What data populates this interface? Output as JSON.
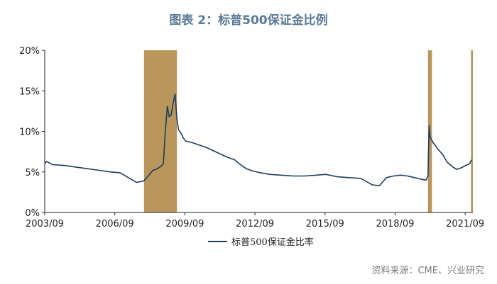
{
  "chart_data": {
    "type": "line",
    "title": "图表 2：标普500保证金比例",
    "xlabel": "",
    "ylabel": "",
    "ylim": [
      0,
      20
    ],
    "yticks": [
      0,
      5,
      10,
      15,
      20
    ],
    "ytick_labels": [
      "0%",
      "5%",
      "10%",
      "15%",
      "20%"
    ],
    "xlim": [
      2003.67,
      2022.0
    ],
    "xticks": [
      2003.67,
      2006.67,
      2009.67,
      2012.67,
      2015.67,
      2018.67,
      2021.67
    ],
    "xtick_labels": [
      "2003/09",
      "2006/09",
      "2009/09",
      "2012/09",
      "2015/09",
      "2018/09",
      "2021/09"
    ],
    "legend": {
      "position": "bottom-center"
    },
    "grid": false,
    "colors": {
      "line": "#1f3d5c",
      "shade": "#b8965c",
      "title": "#5a7898"
    },
    "shaded_periods": [
      [
        2007.92,
        2009.33
      ],
      [
        2020.08,
        2020.25
      ],
      [
        2021.92,
        2022.0
      ]
    ],
    "series": [
      {
        "name": "标普500保证金比率",
        "x": [
          2003.67,
          2003.75,
          2004.0,
          2004.5,
          2005.0,
          2005.5,
          2006.0,
          2006.5,
          2006.9,
          2007.25,
          2007.6,
          2007.92,
          2008.1,
          2008.3,
          2008.5,
          2008.65,
          2008.75,
          2008.83,
          2008.92,
          2009.0,
          2009.08,
          2009.17,
          2009.25,
          2009.33,
          2009.4,
          2009.5,
          2009.58,
          2009.7,
          2009.85,
          2010.0,
          2010.3,
          2010.6,
          2010.9,
          2011.2,
          2011.5,
          2011.8,
          2012.0,
          2012.3,
          2012.6,
          2012.9,
          2013.3,
          2013.8,
          2014.3,
          2014.8,
          2015.3,
          2015.7,
          2016.2,
          2016.7,
          2017.2,
          2017.7,
          2018.0,
          2018.3,
          2018.6,
          2018.9,
          2019.2,
          2019.5,
          2019.8,
          2020.0,
          2020.08,
          2020.1,
          2020.13,
          2020.17,
          2020.3,
          2020.5,
          2020.7,
          2020.9,
          2021.1,
          2021.3,
          2021.5,
          2021.7,
          2021.85,
          2021.95
        ],
        "values": [
          6.0,
          6.3,
          5.9,
          5.8,
          5.6,
          5.4,
          5.2,
          5.0,
          4.9,
          4.3,
          3.7,
          3.9,
          4.5,
          5.2,
          5.4,
          5.7,
          6.0,
          9.8,
          13.1,
          11.8,
          12.0,
          13.5,
          14.6,
          11.5,
          10.2,
          9.8,
          9.3,
          8.8,
          8.7,
          8.6,
          8.3,
          8.0,
          7.6,
          7.2,
          6.8,
          6.5,
          6.0,
          5.4,
          5.1,
          4.9,
          4.7,
          4.6,
          4.5,
          4.5,
          4.6,
          4.7,
          4.4,
          4.3,
          4.2,
          3.4,
          3.3,
          4.3,
          4.5,
          4.6,
          4.5,
          4.3,
          4.1,
          4.0,
          4.5,
          7.5,
          10.7,
          9.3,
          8.6,
          7.8,
          7.2,
          6.2,
          5.7,
          5.3,
          5.5,
          5.8,
          6.0,
          6.5
        ]
      }
    ]
  },
  "source_text": "资料来源：CME、兴业研究"
}
